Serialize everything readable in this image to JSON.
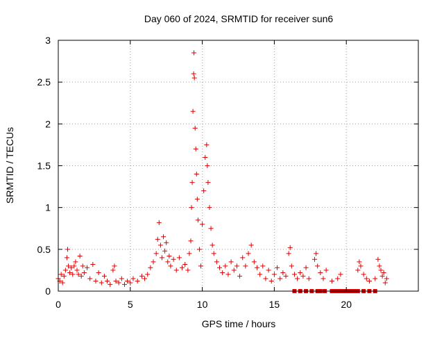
{
  "chart_data": {
    "type": "scatter",
    "title": "Day 060 of 2024, SRMTID for receiver sun6",
    "xlabel": "GPS time / hours",
    "ylabel": "SRMTID / TECUs",
    "xlim": [
      0,
      25
    ],
    "ylim": [
      0,
      3
    ],
    "xticks": [
      0,
      5,
      10,
      15,
      20
    ],
    "yticks": [
      0,
      0.5,
      1,
      1.5,
      2,
      2.5,
      3
    ],
    "ytick_labels": [
      "0",
      "0.5",
      "1",
      "1.5",
      "2",
      "2.5",
      "3"
    ],
    "grid": true,
    "marker": "+",
    "series": [
      {
        "name": "SRMTID",
        "color": "#dd0000",
        "points": [
          [
            0.0,
            0.15
          ],
          [
            0.1,
            0.12
          ],
          [
            0.2,
            0.2
          ],
          [
            0.3,
            0.1
          ],
          [
            0.4,
            0.18
          ],
          [
            0.5,
            0.25
          ],
          [
            0.6,
            0.4
          ],
          [
            0.65,
            0.5
          ],
          [
            0.7,
            0.3
          ],
          [
            0.8,
            0.22
          ],
          [
            0.9,
            0.28
          ],
          [
            1.0,
            0.2
          ],
          [
            1.1,
            0.3
          ],
          [
            1.2,
            0.35
          ],
          [
            1.3,
            0.25
          ],
          [
            1.4,
            0.2
          ],
          [
            1.5,
            0.42
          ],
          [
            1.6,
            0.18
          ],
          [
            1.7,
            0.3
          ],
          [
            1.8,
            0.22
          ],
          [
            2.0,
            0.28
          ],
          [
            2.2,
            0.15
          ],
          [
            2.4,
            0.32
          ],
          [
            2.6,
            0.12
          ],
          [
            2.8,
            0.22
          ],
          [
            3.0,
            0.1
          ],
          [
            3.2,
            0.18
          ],
          [
            3.4,
            0.12
          ],
          [
            3.6,
            0.08
          ],
          [
            3.8,
            0.25
          ],
          [
            3.9,
            0.3
          ],
          [
            4.0,
            0.12
          ],
          [
            4.2,
            0.1
          ],
          [
            4.4,
            0.15
          ],
          [
            4.6,
            0.08
          ],
          [
            4.8,
            0.12
          ],
          [
            5.0,
            0.1
          ],
          [
            5.2,
            0.15
          ],
          [
            5.5,
            0.12
          ],
          [
            5.8,
            0.18
          ],
          [
            6.0,
            0.15
          ],
          [
            6.2,
            0.2
          ],
          [
            6.4,
            0.28
          ],
          [
            6.6,
            0.35
          ],
          [
            6.8,
            0.45
          ],
          [
            6.9,
            0.62
          ],
          [
            7.0,
            0.82
          ],
          [
            7.1,
            0.55
          ],
          [
            7.2,
            0.4
          ],
          [
            7.3,
            0.65
          ],
          [
            7.4,
            0.48
          ],
          [
            7.5,
            0.58
          ],
          [
            7.6,
            0.35
          ],
          [
            7.7,
            0.42
          ],
          [
            7.8,
            0.3
          ],
          [
            8.0,
            0.38
          ],
          [
            8.2,
            0.25
          ],
          [
            8.4,
            0.4
          ],
          [
            8.6,
            0.28
          ],
          [
            8.8,
            0.32
          ],
          [
            9.0,
            0.25
          ],
          [
            9.1,
            0.45
          ],
          [
            9.2,
            0.6
          ],
          [
            9.25,
            1.0
          ],
          [
            9.3,
            1.3
          ],
          [
            9.35,
            2.15
          ],
          [
            9.4,
            2.6
          ],
          [
            9.42,
            2.85
          ],
          [
            9.45,
            2.55
          ],
          [
            9.5,
            1.95
          ],
          [
            9.55,
            1.7
          ],
          [
            9.6,
            1.4
          ],
          [
            9.65,
            1.1
          ],
          [
            9.7,
            0.85
          ],
          [
            9.8,
            0.5
          ],
          [
            9.9,
            0.3
          ],
          [
            10.0,
            0.8
          ],
          [
            10.1,
            1.2
          ],
          [
            10.2,
            1.6
          ],
          [
            10.3,
            1.75
          ],
          [
            10.35,
            1.5
          ],
          [
            10.4,
            1.3
          ],
          [
            10.5,
            1.0
          ],
          [
            10.6,
            0.75
          ],
          [
            10.7,
            0.55
          ],
          [
            10.8,
            0.45
          ],
          [
            11.0,
            0.35
          ],
          [
            11.2,
            0.28
          ],
          [
            11.4,
            0.22
          ],
          [
            11.6,
            0.3
          ],
          [
            11.8,
            0.2
          ],
          [
            12.0,
            0.35
          ],
          [
            12.2,
            0.25
          ],
          [
            12.4,
            0.3
          ],
          [
            12.6,
            0.18
          ],
          [
            12.8,
            0.4
          ],
          [
            13.0,
            0.3
          ],
          [
            13.2,
            0.45
          ],
          [
            13.4,
            0.55
          ],
          [
            13.6,
            0.35
          ],
          [
            13.8,
            0.28
          ],
          [
            14.0,
            0.2
          ],
          [
            14.2,
            0.3
          ],
          [
            14.4,
            0.15
          ],
          [
            14.6,
            0.25
          ],
          [
            14.8,
            0.12
          ],
          [
            15.0,
            0.2
          ],
          [
            15.2,
            0.28
          ],
          [
            15.4,
            0.15
          ],
          [
            15.6,
            0.22
          ],
          [
            15.8,
            0.18
          ],
          [
            16.0,
            0.45
          ],
          [
            16.1,
            0.52
          ],
          [
            16.2,
            0.3
          ],
          [
            16.4,
            0.2
          ],
          [
            16.6,
            0.15
          ],
          [
            16.8,
            0.22
          ],
          [
            17.0,
            0.18
          ],
          [
            17.2,
            0.28
          ],
          [
            17.4,
            0.15
          ],
          [
            17.8,
            0.38
          ],
          [
            17.9,
            0.45
          ],
          [
            18.0,
            0.3
          ],
          [
            18.2,
            0.22
          ],
          [
            18.4,
            0.15
          ],
          [
            18.6,
            0.25
          ],
          [
            19.0,
            0.12
          ],
          [
            19.4,
            0.15
          ],
          [
            19.6,
            0.2
          ],
          [
            20.8,
            0.25
          ],
          [
            20.9,
            0.35
          ],
          [
            21.0,
            0.3
          ],
          [
            21.2,
            0.2
          ],
          [
            21.4,
            0.15
          ],
          [
            21.6,
            0.12
          ],
          [
            22.0,
            0.15
          ],
          [
            22.2,
            0.38
          ],
          [
            22.3,
            0.3
          ],
          [
            22.4,
            0.25
          ],
          [
            22.5,
            0.18
          ],
          [
            22.6,
            0.22
          ],
          [
            22.7,
            0.1
          ],
          [
            22.8,
            0.15
          ]
        ]
      }
    ],
    "zero_points_x": [
      16.4,
      16.8,
      17.2,
      17.6,
      18.0,
      18.2,
      18.5,
      19.0,
      19.2,
      19.4,
      19.6,
      19.8,
      20.0,
      20.2,
      20.4,
      20.6,
      20.8,
      21.2,
      21.6,
      22.0
    ]
  }
}
